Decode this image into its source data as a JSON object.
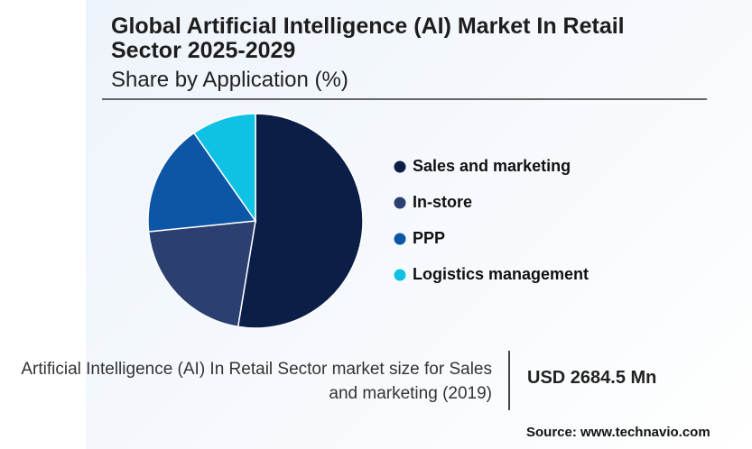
{
  "chart_data": {
    "type": "pie",
    "title": "Global Artificial Intelligence (AI) Market In Retail Sector 2025-2029",
    "subtitle": "Share by Application (%)",
    "categories": [
      "Sales and marketing",
      "In-store",
      "PPP",
      "Logistics management"
    ],
    "values": [
      52.6,
      20.8,
      16.9,
      9.7
    ],
    "colors": [
      "#0b1e48",
      "#2b4070",
      "#0d56a6",
      "#0fc2e4"
    ]
  },
  "footer": {
    "description": "Artificial Intelligence (AI) In Retail Sector market size for Sales and marketing (2019)",
    "value": "USD 2684.5 Mn",
    "source": "Source: www.technavio.com"
  }
}
